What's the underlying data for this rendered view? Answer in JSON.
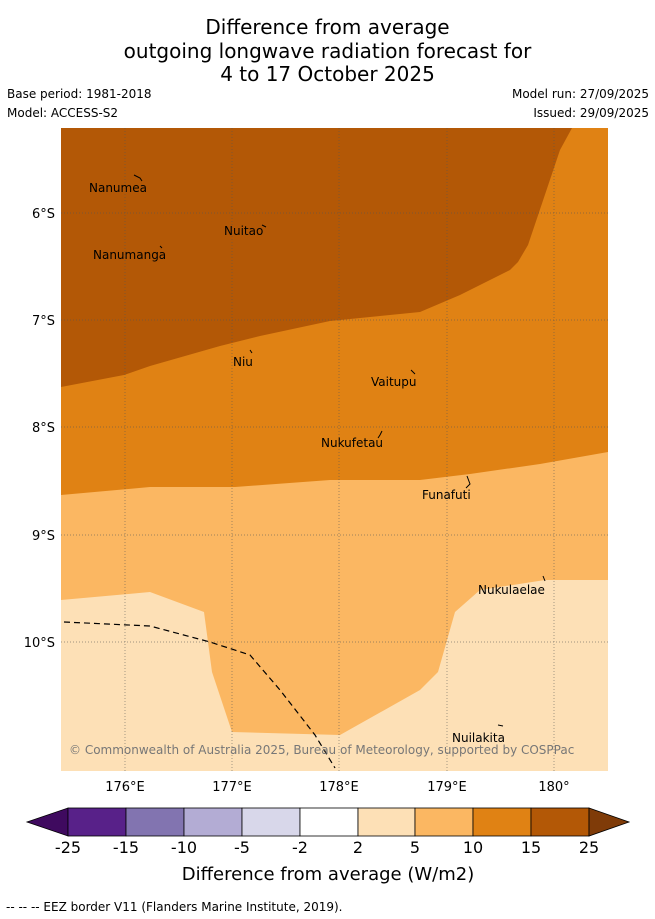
{
  "title": {
    "line1": "Difference from average",
    "line2": "outgoing longwave radiation forecast for",
    "line3": "4 to 17 October 2025"
  },
  "meta": {
    "base_period": "Base period: 1981-2018",
    "model": "Model: ACCESS-S2",
    "model_run": "Model run: 27/09/2025",
    "issued": "Issued: 29/09/2025"
  },
  "map": {
    "lat_labels": [
      "6°S",
      "7°S",
      "8°S",
      "9°S",
      "10°S"
    ],
    "lon_labels": [
      "176°E",
      "177°E",
      "178°E",
      "179°E",
      "180°"
    ],
    "islands": [
      "Nanumea",
      "Nuitao",
      "Nanumanga",
      "Niu",
      "Vaitupu",
      "Nukufetau",
      "Funafuti",
      "Nukulaelae",
      "Nuilakita"
    ],
    "copyright": "© Commonwealth of Australia 2025, Bureau of Meteorology, supported by COSPPac"
  },
  "colorbar": {
    "ticks": [
      "-25",
      "-15",
      "-10",
      "-5",
      "-2",
      "2",
      "5",
      "10",
      "15",
      "25"
    ],
    "colors": [
      "#3f0a5f",
      "#582189",
      "#8274b0",
      "#b3acd4",
      "#d8d7ea",
      "#ffffff",
      "#fde0b6",
      "#fbb762",
      "#e08214",
      "#b35806",
      "#7f3b08"
    ],
    "label": "Difference from average (W/m2)"
  },
  "footer": "-- -- -- EEZ border V11 (Flanders Marine Institute, 2019)."
}
